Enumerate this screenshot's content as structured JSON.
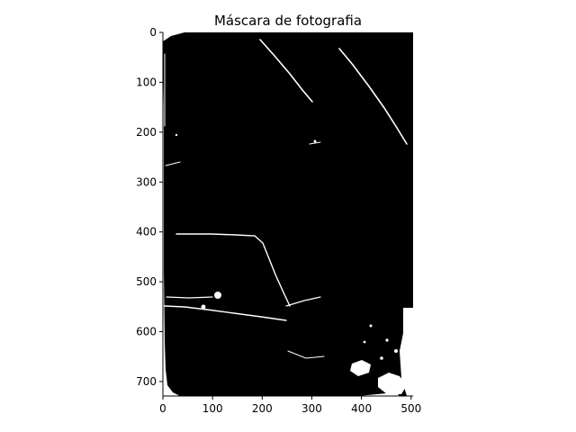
{
  "figure": {
    "title": "Máscara de fotografia"
  },
  "image": {
    "width": 504,
    "height": 729,
    "mask_color": "#000000",
    "highlight_color": "#ffffff",
    "background": "#ffffff"
  },
  "axes": {
    "x_ticks": [
      0,
      100,
      200,
      300,
      400,
      500
    ],
    "y_ticks": [
      0,
      100,
      200,
      300,
      400,
      500,
      600,
      700
    ],
    "xlim": [
      0,
      504
    ],
    "ylim": [
      729,
      0
    ]
  }
}
